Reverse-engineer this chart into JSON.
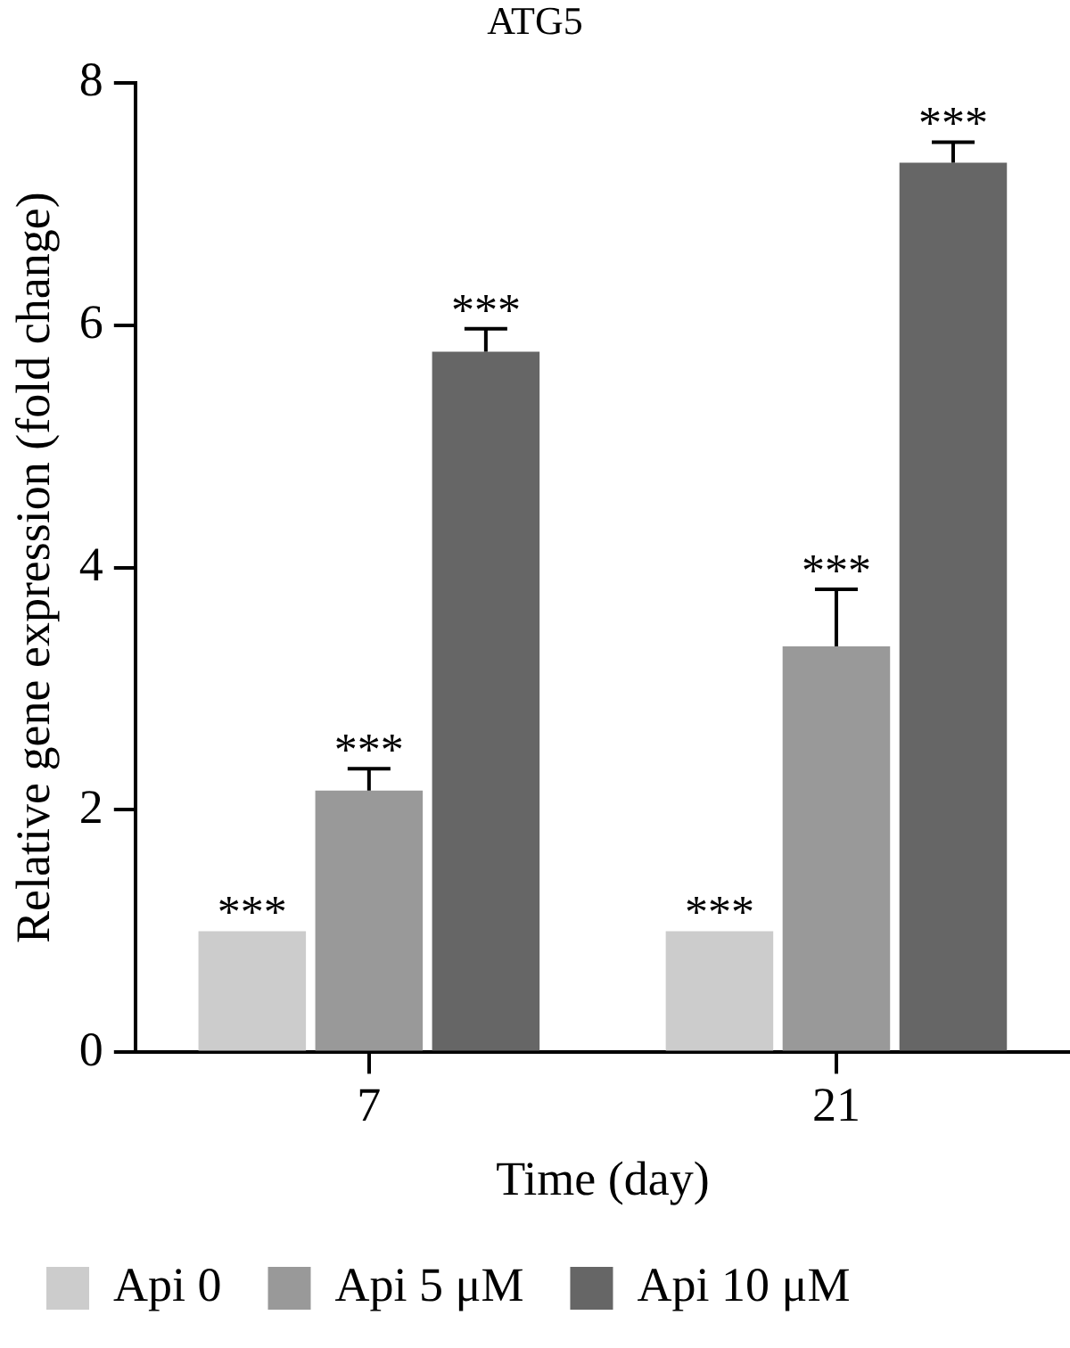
{
  "chart_data": {
    "type": "bar",
    "title": "ATG5",
    "xlabel": "Time (day)",
    "ylabel": "Relative gene expression (fold change)",
    "categories": [
      "7",
      "21"
    ],
    "series": [
      {
        "name": "Api 0",
        "color": "#cccccc",
        "values": [
          1.0,
          1.0
        ],
        "value_labels": [
          "***",
          "***"
        ]
      },
      {
        "name": "Api 5 μM",
        "color": "#999999",
        "values": [
          2.16,
          3.35
        ],
        "errors": [
          0.18,
          0.47
        ],
        "value_labels": [
          "***",
          "***"
        ]
      },
      {
        "name": "Api 10 μM",
        "color": "#666666",
        "values": [
          5.78,
          7.34
        ],
        "errors": [
          0.19,
          0.17
        ],
        "value_labels": [
          "***",
          "***"
        ]
      }
    ],
    "ylim": [
      0,
      8
    ],
    "yticks": [
      0,
      2,
      4,
      6,
      8
    ],
    "grid": false,
    "legend": "bottom"
  }
}
